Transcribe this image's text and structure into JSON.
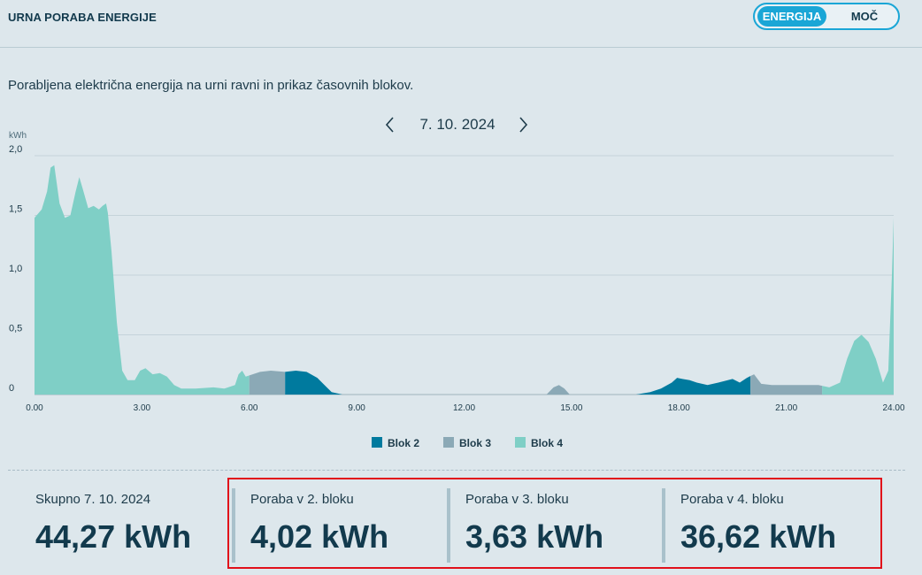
{
  "header": {
    "title": "URNA PORABA ENERGIJE",
    "toggle": {
      "active_label": "ENERGIJA",
      "inactive_label": "MOČ"
    }
  },
  "subtitle": "Porabljena električna energija na urni ravni in prikaz časovnih blokov.",
  "date_nav": {
    "date": "7. 10. 2024",
    "prev_icon": "chevron-left-icon",
    "next_icon": "chevron-right-icon"
  },
  "chart_data": {
    "type": "area",
    "ylabel": "kWh",
    "xlim": [
      0,
      24
    ],
    "ylim": [
      0,
      2.0
    ],
    "x_ticks": [
      "0.00",
      "3.00",
      "6.00",
      "9.00",
      "12.00",
      "15.00",
      "18.00",
      "21.00",
      "24.00"
    ],
    "y_ticks": [
      "0",
      "0,5",
      "1,0",
      "1,5",
      "2,0"
    ],
    "grid": true,
    "legend": "bottom-center",
    "series_colors": {
      "Blok 2": "#007a9e",
      "Blok 3": "#8ba9b6",
      "Blok 4": "#7fcfc6"
    },
    "legend_entries": [
      "Blok 2",
      "Blok 3",
      "Blok 4"
    ],
    "points": [
      [
        0.0,
        1.48
      ],
      [
        0.2,
        1.55
      ],
      [
        0.35,
        1.7
      ],
      [
        0.45,
        1.9
      ],
      [
        0.55,
        1.92
      ],
      [
        0.7,
        1.6
      ],
      [
        0.85,
        1.48
      ],
      [
        1.0,
        1.5
      ],
      [
        1.15,
        1.7
      ],
      [
        1.25,
        1.82
      ],
      [
        1.35,
        1.72
      ],
      [
        1.5,
        1.56
      ],
      [
        1.65,
        1.58
      ],
      [
        1.8,
        1.55
      ],
      [
        1.9,
        1.58
      ],
      [
        2.0,
        1.6
      ],
      [
        2.05,
        1.52
      ],
      [
        2.15,
        1.2
      ],
      [
        2.3,
        0.6
      ],
      [
        2.45,
        0.2
      ],
      [
        2.6,
        0.12
      ],
      [
        2.8,
        0.12
      ],
      [
        2.95,
        0.2
      ],
      [
        3.1,
        0.22
      ],
      [
        3.3,
        0.17
      ],
      [
        3.5,
        0.18
      ],
      [
        3.7,
        0.15
      ],
      [
        3.9,
        0.08
      ],
      [
        4.1,
        0.05
      ],
      [
        4.5,
        0.05
      ],
      [
        5.0,
        0.06
      ],
      [
        5.3,
        0.05
      ],
      [
        5.6,
        0.08
      ],
      [
        5.7,
        0.17
      ],
      [
        5.8,
        0.2
      ],
      [
        5.9,
        0.15
      ],
      [
        6.0,
        0.16
      ],
      [
        6.3,
        0.19
      ],
      [
        6.6,
        0.2
      ],
      [
        7.0,
        0.19
      ],
      [
        7.3,
        0.2
      ],
      [
        7.6,
        0.19
      ],
      [
        7.9,
        0.14
      ],
      [
        8.1,
        0.08
      ],
      [
        8.3,
        0.02
      ],
      [
        8.6,
        0.0
      ],
      [
        14.3,
        0.0
      ],
      [
        14.5,
        0.06
      ],
      [
        14.65,
        0.08
      ],
      [
        14.8,
        0.05
      ],
      [
        14.95,
        0.0
      ],
      [
        16.8,
        0.0
      ],
      [
        17.2,
        0.02
      ],
      [
        17.5,
        0.05
      ],
      [
        17.8,
        0.1
      ],
      [
        17.95,
        0.14
      ],
      [
        18.1,
        0.13
      ],
      [
        18.3,
        0.12
      ],
      [
        18.5,
        0.1
      ],
      [
        18.8,
        0.08
      ],
      [
        19.1,
        0.1
      ],
      [
        19.5,
        0.13
      ],
      [
        19.7,
        0.1
      ],
      [
        19.9,
        0.14
      ],
      [
        20.1,
        0.17
      ],
      [
        20.3,
        0.09
      ],
      [
        20.6,
        0.08
      ],
      [
        21.0,
        0.08
      ],
      [
        21.5,
        0.08
      ],
      [
        21.9,
        0.08
      ],
      [
        22.2,
        0.06
      ],
      [
        22.5,
        0.1
      ],
      [
        22.7,
        0.3
      ],
      [
        22.9,
        0.45
      ],
      [
        23.1,
        0.5
      ],
      [
        23.3,
        0.44
      ],
      [
        23.5,
        0.3
      ],
      [
        23.7,
        0.1
      ],
      [
        23.85,
        0.2
      ],
      [
        23.95,
        1.0
      ],
      [
        24.0,
        1.48
      ]
    ],
    "blocks": [
      {
        "name": "Blok 4",
        "from": 0,
        "to": 6
      },
      {
        "name": "Blok 3",
        "from": 6,
        "to": 7
      },
      {
        "name": "Blok 2",
        "from": 7,
        "to": 14
      },
      {
        "name": "Blok 3",
        "from": 14,
        "to": 16
      },
      {
        "name": "Blok 2",
        "from": 16,
        "to": 20
      },
      {
        "name": "Blok 3",
        "from": 20,
        "to": 22
      },
      {
        "name": "Blok 4",
        "from": 22,
        "to": 24
      }
    ]
  },
  "stats": [
    {
      "label": "Skupno 7. 10. 2024",
      "value": "44,27 kWh"
    },
    {
      "label": "Poraba v 2. bloku",
      "value": "4,02 kWh"
    },
    {
      "label": "Poraba v 3. bloku",
      "value": "3,63 kWh"
    },
    {
      "label": "Poraba v 4. bloku",
      "value": "36,62 kWh"
    }
  ]
}
